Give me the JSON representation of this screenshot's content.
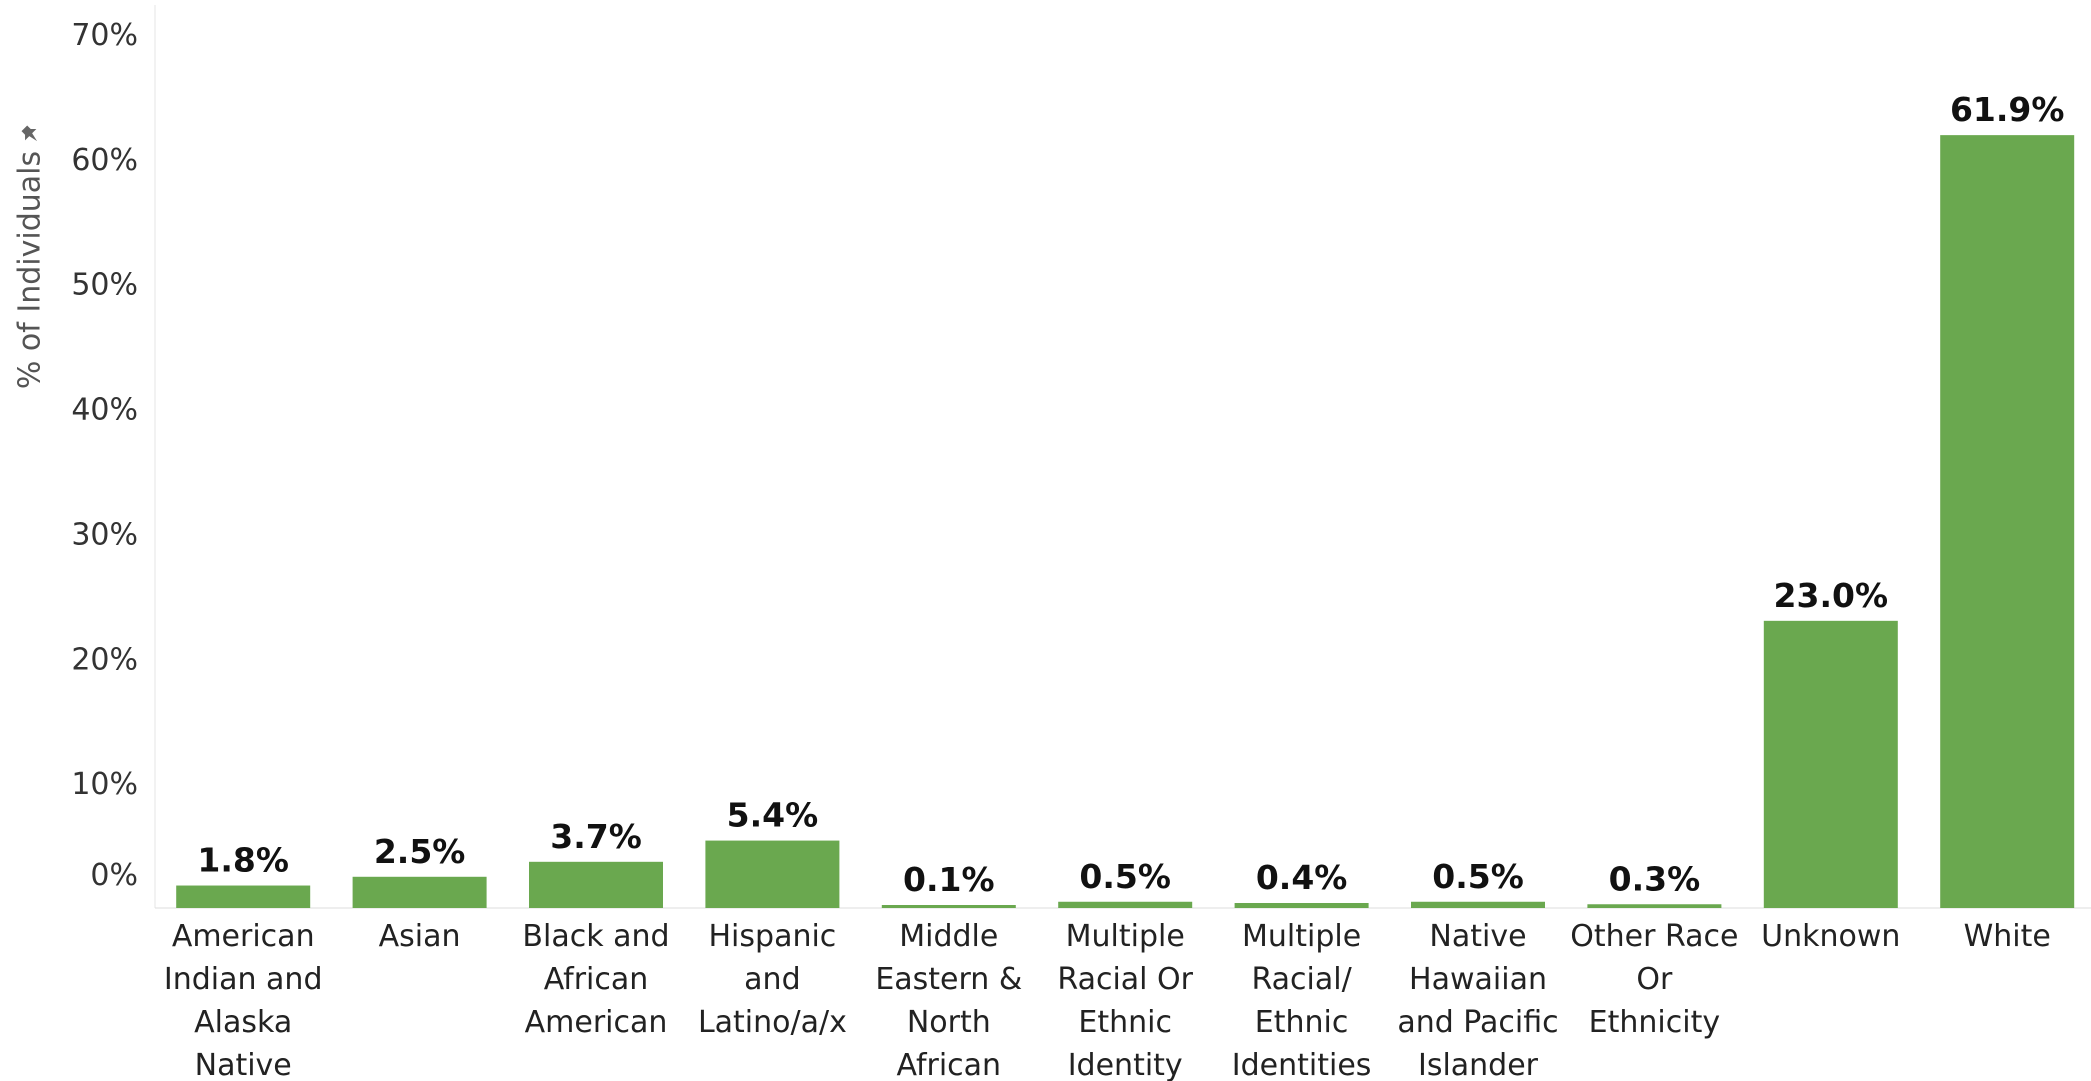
{
  "colors": {
    "bar": "#6aa84f"
  },
  "chart_data": {
    "type": "bar",
    "ylabel": "% of Individuals",
    "ylabel_icon": "pin-icon",
    "ylim": [
      0,
      70
    ],
    "yticks": [
      "0%",
      "10%",
      "20%",
      "30%",
      "40%",
      "50%",
      "60%",
      "70%"
    ],
    "grid": false,
    "categories": [
      "American Indian and Alaska Native",
      "Asian",
      "Black and African American",
      "Hispanic and Latino/a/x",
      "Middle Eastern & North African",
      "Multiple Racial Or Ethnic Identity",
      "Multiple Racial/ Ethnic Identities",
      "Native Hawaiian and Pacific Islander",
      "Other Race Or Ethnicity",
      "Unknown",
      "White"
    ],
    "category_lines": [
      [
        "American",
        "Indian and",
        "Alaska",
        "Native"
      ],
      [
        "Asian"
      ],
      [
        "Black and",
        "African",
        "American"
      ],
      [
        "Hispanic",
        "and",
        "Latino/a/x"
      ],
      [
        "Middle",
        "Eastern &",
        "North",
        "African"
      ],
      [
        "Multiple",
        "Racial Or",
        "Ethnic",
        "Identity"
      ],
      [
        "Multiple",
        "Racial/",
        "Ethnic",
        "Identities"
      ],
      [
        "Native",
        "Hawaiian",
        "and Pacific",
        "Islander"
      ],
      [
        "Other Race",
        "Or",
        "Ethnicity"
      ],
      [
        "Unknown"
      ],
      [
        "White"
      ]
    ],
    "values": [
      1.8,
      2.5,
      3.7,
      5.4,
      0.1,
      0.5,
      0.4,
      0.5,
      0.3,
      23.0,
      61.9
    ],
    "data_labels": [
      "1.8%",
      "2.5%",
      "3.7%",
      "5.4%",
      "0.1%",
      "0.5%",
      "0.4%",
      "0.5%",
      "0.3%",
      "23.0%",
      "61.9%"
    ]
  }
}
